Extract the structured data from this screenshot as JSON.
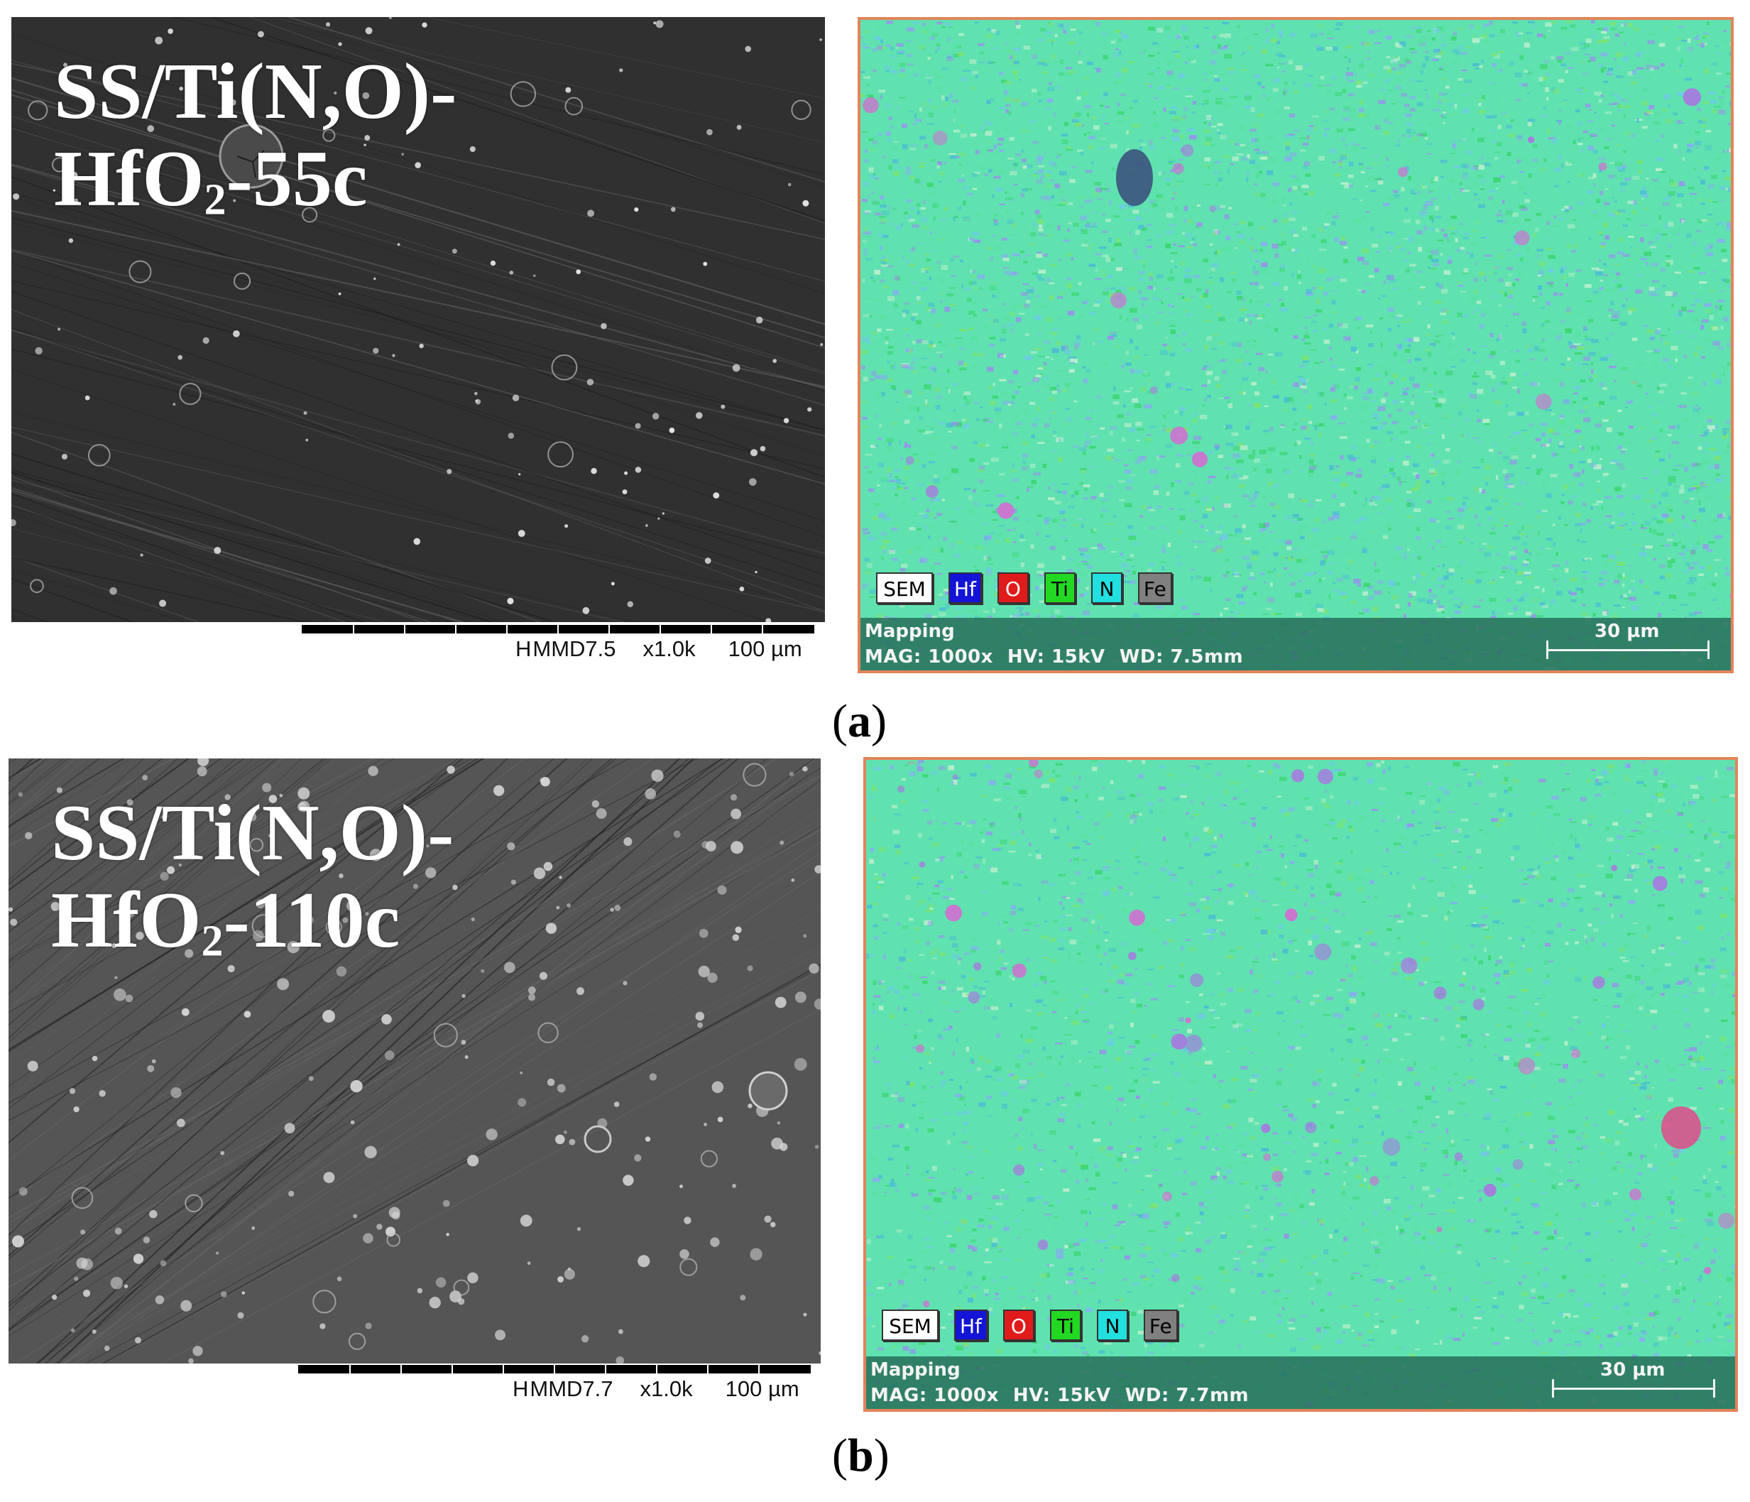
{
  "panels": [
    {
      "label": "(a)",
      "label_letter": "a",
      "sem": {
        "title_line1": "SS/Ti(N,O)-",
        "title_pre": "HfO",
        "title_sub": "2",
        "title_post": "-55c",
        "info_mode": "H",
        "info_md": "MMD7.5",
        "info_mag": "x1.0k",
        "info_scale": "100 µm"
      },
      "map": {
        "legend": [
          {
            "label": "SEM",
            "color": "#ffffff",
            "text": "#000000"
          },
          {
            "label": "Hf",
            "color": "#1414d6",
            "text": "#ffffff"
          },
          {
            "label": "O",
            "color": "#e01b1b",
            "text": "#ffffff"
          },
          {
            "label": "Ti",
            "color": "#22d822",
            "text": "#000000"
          },
          {
            "label": "N",
            "color": "#22e0e0",
            "text": "#000000"
          },
          {
            "label": "Fe",
            "color": "#808080",
            "text": "#000000"
          }
        ],
        "mode": "Mapping",
        "mag": "MAG: 1000x",
        "hv": "HV: 15kV",
        "wd": "WD: 7.5mm",
        "scale": "30 µm"
      }
    },
    {
      "label": "(b)",
      "label_letter": "b",
      "sem": {
        "title_line1": "SS/Ti(N,O)-",
        "title_pre": "HfO",
        "title_sub": "2",
        "title_post": "-110c",
        "info_mode": "H",
        "info_md": "MMD7.7",
        "info_mag": "x1.0k",
        "info_scale": "100 µm"
      },
      "map": {
        "legend": [
          {
            "label": "SEM",
            "color": "#ffffff",
            "text": "#000000"
          },
          {
            "label": "Hf",
            "color": "#1414d6",
            "text": "#ffffff"
          },
          {
            "label": "O",
            "color": "#e01b1b",
            "text": "#ffffff"
          },
          {
            "label": "Ti",
            "color": "#22d822",
            "text": "#000000"
          },
          {
            "label": "N",
            "color": "#22e0e0",
            "text": "#000000"
          },
          {
            "label": "Fe",
            "color": "#808080",
            "text": "#000000"
          }
        ],
        "mode": "Mapping",
        "mag": "MAG: 1000x",
        "hv": "HV: 15kV",
        "wd": "WD: 7.7mm",
        "scale": "30 µm"
      }
    }
  ],
  "colors": {
    "sem_a_bg": "#303030",
    "sem_b_bg": "#555555",
    "map_base": "#5fe2b0",
    "map_border": "#e2845a"
  }
}
